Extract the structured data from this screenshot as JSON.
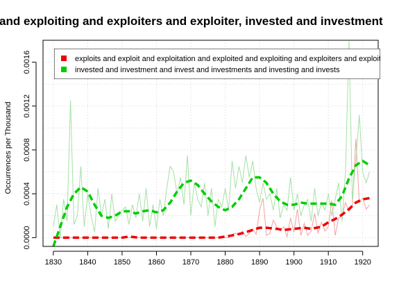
{
  "chart_data": {
    "type": "line",
    "title": "and exploiting and exploiters and exploiter, invested and investment",
    "ylabel": "Occurrences per Thousand",
    "xlabel": "",
    "xlim": [
      1827,
      1924.5
    ],
    "ylim": [
      -8e-05,
      0.0018
    ],
    "x_ticks": [
      1830,
      1840,
      1850,
      1860,
      1870,
      1880,
      1890,
      1900,
      1910,
      1920
    ],
    "y_ticks": [
      0.0,
      0.0004,
      0.0008,
      0.0012,
      0.0016
    ],
    "y_tick_labels": [
      "0.0000",
      "0.0004",
      "0.0008",
      "0.0012",
      "0.0016"
    ],
    "grid": true,
    "legend_position": "top-right",
    "series": [
      {
        "name": "exploits and exploit and exploitation and exploited and exploiting and exploiters and exploiter",
        "color": "#ee0000",
        "raw_color": "#f4a0a0",
        "x": [
          1830,
          1831,
          1832,
          1833,
          1834,
          1835,
          1836,
          1837,
          1838,
          1839,
          1840,
          1841,
          1842,
          1843,
          1844,
          1845,
          1846,
          1847,
          1848,
          1849,
          1850,
          1851,
          1852,
          1853,
          1854,
          1855,
          1856,
          1857,
          1858,
          1859,
          1860,
          1861,
          1862,
          1863,
          1864,
          1865,
          1866,
          1867,
          1868,
          1869,
          1870,
          1871,
          1872,
          1873,
          1874,
          1875,
          1876,
          1877,
          1878,
          1879,
          1880,
          1881,
          1882,
          1883,
          1884,
          1885,
          1886,
          1887,
          1888,
          1889,
          1890,
          1891,
          1892,
          1893,
          1894,
          1895,
          1896,
          1897,
          1898,
          1899,
          1900,
          1901,
          1902,
          1903,
          1904,
          1905,
          1906,
          1907,
          1908,
          1909,
          1910,
          1911,
          1912,
          1913,
          1914,
          1915,
          1916,
          1917,
          1918,
          1919,
          1920,
          1921,
          1922
        ],
        "values": [
          0,
          0,
          0,
          0,
          0,
          0,
          0,
          0,
          0,
          0,
          0,
          0,
          0,
          0,
          0,
          0,
          0,
          0,
          0,
          0,
          0,
          0,
          0,
          0,
          0,
          0,
          0,
          0,
          0,
          0,
          0,
          0,
          0,
          0,
          0,
          0,
          0,
          0,
          0,
          0,
          0,
          0,
          0,
          0,
          0,
          0,
          0,
          0,
          0,
          0,
          0,
          0,
          3e-05,
          4e-05,
          2e-05,
          6e-05,
          1e-05,
          4e-05,
          8e-05,
          3e-05,
          0.00025,
          0.00036,
          2e-05,
          4e-05,
          0.00016,
          0.0001,
          6e-05,
          0.0001,
          1e-05,
          0.00018,
          5e-05,
          0.00026,
          2e-05,
          0.00013,
          2e-05,
          6e-05,
          0.00022,
          4e-05,
          0.00014,
          6e-05,
          0.0001,
          0.00034,
          2e-05,
          0.00018,
          0.0002,
          0.00032,
          0.00024,
          0.00028,
          0.0009,
          0.00032,
          0.00036,
          0.00026,
          0.0003
        ],
        "smooth_x": [
          1830,
          1832,
          1835,
          1840,
          1845,
          1850,
          1852,
          1855,
          1860,
          1865,
          1870,
          1875,
          1878,
          1880,
          1882,
          1885,
          1888,
          1890,
          1892,
          1895,
          1897,
          1900,
          1903,
          1905,
          1908,
          1910,
          1912,
          1914,
          1916,
          1918,
          1920,
          1922
        ],
        "smooth": [
          0,
          0,
          0,
          0,
          0,
          0,
          1e-05,
          0,
          0,
          0,
          0,
          0,
          0,
          1e-05,
          2e-05,
          4e-05,
          7e-05,
          9e-05,
          9e-05,
          8e-05,
          7e-05,
          8e-05,
          9e-05,
          8e-05,
          0.0001,
          0.00014,
          0.00017,
          0.00021,
          0.00026,
          0.00032,
          0.00035,
          0.00036
        ]
      },
      {
        "name": "invested and investment and invest and investments and investing and invests",
        "color": "#00cc00",
        "raw_color": "#a4e0a4",
        "x": [
          1830,
          1831,
          1832,
          1833,
          1834,
          1835,
          1836,
          1837,
          1838,
          1839,
          1840,
          1841,
          1842,
          1843,
          1844,
          1845,
          1846,
          1847,
          1848,
          1849,
          1850,
          1851,
          1852,
          1853,
          1854,
          1855,
          1856,
          1857,
          1858,
          1859,
          1860,
          1861,
          1862,
          1863,
          1864,
          1865,
          1866,
          1867,
          1868,
          1869,
          1870,
          1871,
          1872,
          1873,
          1874,
          1875,
          1876,
          1877,
          1878,
          1879,
          1880,
          1881,
          1882,
          1883,
          1884,
          1885,
          1886,
          1887,
          1888,
          1889,
          1890,
          1891,
          1892,
          1893,
          1894,
          1895,
          1896,
          1897,
          1898,
          1899,
          1900,
          1901,
          1902,
          1903,
          1904,
          1905,
          1906,
          1907,
          1908,
          1909,
          1910,
          1911,
          1912,
          1913,
          1914,
          1915,
          1916,
          1917,
          1918,
          1919,
          1920,
          1921,
          1922
        ],
        "values": [
          0.0001,
          0.0003,
          0,
          0.00035,
          0.00015,
          0.00125,
          0.00012,
          0.0002,
          0.00065,
          0.0001,
          0.0004,
          0.0002,
          5e-05,
          0.00045,
          0.0002,
          0.00035,
          8e-05,
          0.0004,
          0.00015,
          0.0002,
          0.00025,
          0.00028,
          0.00012,
          0.0003,
          0.00018,
          0.0004,
          0.00015,
          0.00045,
          0.0001,
          0.0003,
          8e-05,
          0.00035,
          0.0002,
          0.00045,
          0.00065,
          0.0006,
          0.0004,
          0.00055,
          0.0003,
          0.00075,
          0.0002,
          0.0005,
          0.00035,
          0.00028,
          0.0005,
          0.0002,
          0.00045,
          0.0001,
          0.00035,
          0.00028,
          0.00045,
          0.00025,
          0.0007,
          0.00045,
          0.00065,
          0.0005,
          0.00075,
          0.00055,
          0.0007,
          0.00045,
          0.00032,
          0.0005,
          0.00035,
          0.0004,
          0.00025,
          0.00045,
          0.00018,
          0.0003,
          0.00025,
          0.00055,
          0.00025,
          0.0004,
          0.0002,
          0.0003,
          0.00035,
          0.00015,
          0.00045,
          0.0002,
          0.00032,
          0.00025,
          0.0004,
          0.0002,
          0.00035,
          0.0005,
          0.00015,
          0.0006,
          0.0018,
          0.00035,
          0.0007,
          0.00112,
          0.0006,
          0.0005,
          0.0006
        ],
        "smooth_x": [
          1830,
          1832,
          1834,
          1836,
          1838,
          1840,
          1842,
          1844,
          1846,
          1848,
          1850,
          1852,
          1854,
          1856,
          1858,
          1860,
          1862,
          1864,
          1866,
          1868,
          1870,
          1872,
          1874,
          1876,
          1878,
          1880,
          1882,
          1884,
          1886,
          1888,
          1890,
          1892,
          1894,
          1896,
          1898,
          1900,
          1902,
          1904,
          1906,
          1908,
          1910,
          1912,
          1914,
          1916,
          1918,
          1920,
          1922
        ],
        "smooth": [
          -8e-05,
          0.0001,
          0.00028,
          0.0004,
          0.00046,
          0.00042,
          0.0003,
          0.0002,
          0.00018,
          0.0002,
          0.00024,
          0.00024,
          0.00022,
          0.00024,
          0.00025,
          0.00023,
          0.00025,
          0.00032,
          0.00042,
          0.0005,
          0.00052,
          0.00048,
          0.0004,
          0.00033,
          0.00028,
          0.00025,
          0.00028,
          0.00035,
          0.00045,
          0.00055,
          0.00055,
          0.0005,
          0.0004,
          0.00033,
          0.0003,
          0.0003,
          0.00032,
          0.00031,
          0.00031,
          0.00031,
          0.00031,
          0.0003,
          0.00038,
          0.00054,
          0.00066,
          0.0007,
          0.00066
        ]
      }
    ]
  }
}
